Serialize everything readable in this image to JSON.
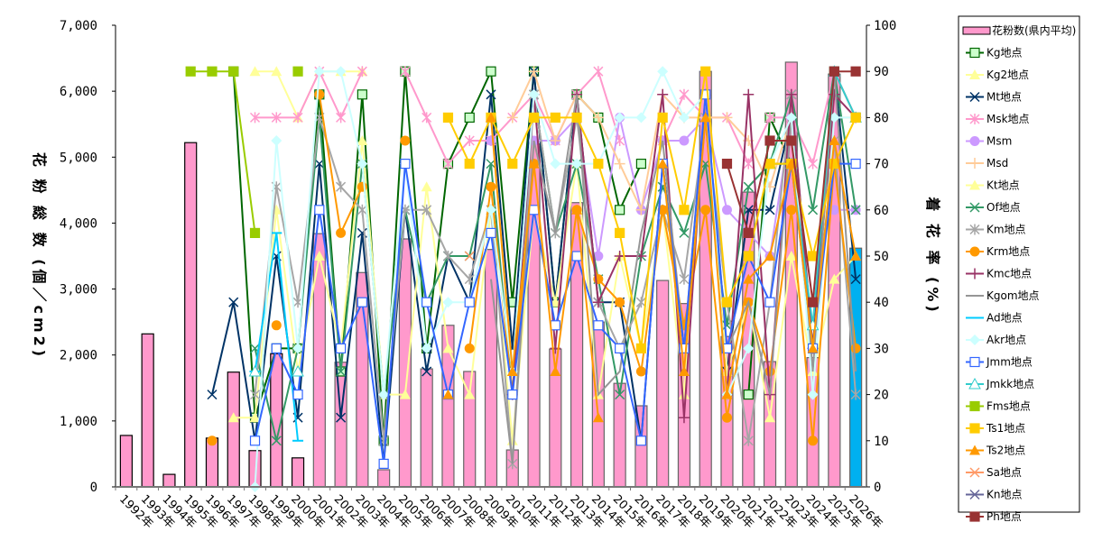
{
  "chart_data": {
    "type": "bar+line",
    "left_axis": {
      "label": "花 粉 総 数 (個／cm2)",
      "ylim": [
        0,
        7000
      ],
      "ticks": [
        "0",
        "1,000",
        "2,000",
        "3,000",
        "4,000",
        "5,000",
        "6,000",
        "7,000"
      ]
    },
    "right_axis": {
      "label": "着 花 率 (%)",
      "ylim": [
        0,
        100
      ],
      "ticks": [
        "0",
        "10",
        "20",
        "30",
        "40",
        "50",
        "60",
        "70",
        "80",
        "90",
        "100"
      ]
    },
    "categories": [
      "1992年",
      "1993年",
      "1994年",
      "1995年",
      "1996年",
      "1997年",
      "1998年",
      "1999年",
      "2000年",
      "2001年",
      "2002年",
      "2003年",
      "2004年",
      "2005年",
      "2006年",
      "2007年",
      "2008年",
      "2009年",
      "2010年",
      "2011年",
      "2012年",
      "2013年",
      "2014年",
      "2015年",
      "2016年",
      "2017年",
      "2018年",
      "2019年",
      "2020年",
      "2021年",
      "2022年",
      "2023年",
      "2024年",
      "2025年",
      "2026年"
    ],
    "legend_placement": "right",
    "bars": {
      "name": "花粉数(県内平均)",
      "color": "#ff99cc",
      "highlight_color": "#00b0f0",
      "values": [
        780,
        2320,
        190,
        5220,
        740,
        1740,
        550,
        2020,
        440,
        3840,
        1890,
        3250,
        260,
        3760,
        1790,
        2450,
        1750,
        3600,
        560,
        5200,
        2090,
        4310,
        2500,
        1570,
        1230,
        3130,
        2780,
        6300,
        2280,
        4470,
        1900,
        6440,
        1960,
        6260,
        3620
      ]
    },
    "series": [
      {
        "name": "Kg地点",
        "color": "#006600",
        "marker": "square",
        "fill": "#ccffcc",
        "values": [
          null,
          null,
          null,
          null,
          null,
          90,
          15,
          30,
          30,
          85,
          25,
          85,
          10,
          90,
          30,
          70,
          80,
          90,
          40,
          90,
          40,
          85,
          80,
          60,
          70,
          null,
          null,
          null,
          null,
          20,
          80,
          70,
          null,
          90,
          80
        ]
      },
      {
        "name": "Kg2地点",
        "color": "#ffff99",
        "marker": "triangle",
        "values": [
          null,
          null,
          null,
          null,
          null,
          null,
          90,
          90,
          80,
          90,
          90,
          90,
          null,
          null,
          null,
          null,
          null,
          null,
          null,
          null,
          null,
          null,
          null,
          null,
          null,
          null,
          null,
          null,
          null,
          null,
          null,
          null,
          null,
          null,
          null
        ]
      },
      {
        "name": "Mt地点",
        "color": "#003366",
        "marker": "x",
        "values": [
          null,
          null,
          null,
          null,
          20,
          40,
          10,
          50,
          15,
          70,
          15,
          55,
          5,
          60,
          25,
          50,
          40,
          85,
          30,
          90,
          40,
          85,
          40,
          40,
          10,
          70,
          30,
          80,
          25,
          60,
          60,
          80,
          30,
          90,
          45
        ]
      },
      {
        "name": "Msk地点",
        "color": "#ff99cc",
        "marker": "star",
        "values": [
          null,
          null,
          null,
          null,
          null,
          null,
          80,
          80,
          80,
          90,
          80,
          90,
          null,
          90,
          80,
          70,
          75,
          75,
          80,
          85,
          75,
          85,
          90,
          75,
          null,
          75,
          85,
          80,
          80,
          70,
          80,
          80,
          70,
          90,
          80
        ]
      },
      {
        "name": "Msm",
        "color": "#cc99ff",
        "marker": "circle",
        "values": [
          null,
          null,
          null,
          null,
          null,
          null,
          null,
          null,
          null,
          null,
          null,
          null,
          null,
          null,
          null,
          null,
          null,
          75,
          null,
          75,
          75,
          80,
          50,
          80,
          60,
          75,
          75,
          80,
          60,
          55,
          50,
          80,
          null,
          60,
          60
        ]
      },
      {
        "name": "Msd",
        "color": "#ffcc99",
        "marker": "plus",
        "values": [
          null,
          null,
          null,
          null,
          null,
          null,
          null,
          null,
          null,
          null,
          null,
          null,
          null,
          null,
          null,
          null,
          null,
          null,
          80,
          90,
          75,
          85,
          80,
          70,
          60,
          85,
          80,
          80,
          80,
          75,
          65,
          80,
          null,
          80,
          80
        ]
      },
      {
        "name": "Kt地点",
        "color": "#ffff99",
        "marker": "triangle",
        "values": [
          null,
          null,
          null,
          null,
          null,
          15,
          15,
          60,
          25,
          50,
          30,
          75,
          20,
          20,
          65,
          30,
          20,
          60,
          10,
          60,
          40,
          70,
          20,
          50,
          30,
          60,
          20,
          85,
          25,
          40,
          15,
          50,
          25,
          45,
          50
        ]
      },
      {
        "name": "Of地点",
        "color": "#339966",
        "marker": "x",
        "values": [
          null,
          null,
          null,
          null,
          null,
          null,
          30,
          10,
          30,
          80,
          25,
          70,
          20,
          60,
          40,
          50,
          50,
          70,
          20,
          85,
          55,
          70,
          45,
          20,
          50,
          65,
          55,
          70,
          35,
          65,
          70,
          85,
          60,
          90,
          60
        ]
      },
      {
        "name": "Km地点",
        "color": "#a6a6a6",
        "marker": "star",
        "values": [
          null,
          null,
          null,
          null,
          null,
          null,
          20,
          65,
          40,
          80,
          65,
          60,
          10,
          60,
          60,
          50,
          45,
          60,
          5,
          85,
          55,
          80,
          40,
          30,
          40,
          60,
          45,
          80,
          40,
          10,
          40,
          85,
          30,
          75,
          20
        ]
      },
      {
        "name": "Krm地点",
        "color": "#ff9900",
        "marker": "circle",
        "values": [
          null,
          null,
          null,
          null,
          10,
          null,
          null,
          35,
          null,
          85,
          55,
          65,
          null,
          75,
          null,
          null,
          30,
          65,
          20,
          70,
          null,
          60,
          45,
          40,
          25,
          60,
          35,
          60,
          15,
          40,
          25,
          60,
          10,
          70,
          30
        ]
      },
      {
        "name": "Kmc地点",
        "color": "#993366",
        "marker": "plus",
        "values": [
          null,
          null,
          null,
          null,
          null,
          null,
          null,
          null,
          null,
          null,
          null,
          null,
          null,
          null,
          null,
          null,
          null,
          null,
          20,
          85,
          30,
          85,
          40,
          50,
          50,
          85,
          15,
          85,
          20,
          85,
          20,
          85,
          30,
          85,
          80
        ]
      },
      {
        "name": "Kgom地点",
        "color": "#969696",
        "marker": "none",
        "values": [
          null,
          null,
          null,
          null,
          null,
          null,
          null,
          null,
          null,
          null,
          null,
          null,
          null,
          null,
          null,
          null,
          null,
          45,
          5,
          75,
          55,
          85,
          20,
          25,
          55,
          75,
          30,
          85,
          30,
          40,
          20,
          80,
          25,
          90,
          25
        ]
      },
      {
        "name": "Ad地点",
        "color": "#00ccff",
        "marker": "dash",
        "values": [
          null,
          null,
          null,
          null,
          null,
          null,
          25,
          55,
          10,
          null,
          null,
          null,
          null,
          null,
          null,
          null,
          null,
          null,
          null,
          null,
          null,
          null,
          null,
          null,
          null,
          null,
          null,
          null,
          null,
          null,
          null,
          null,
          null,
          null,
          null
        ]
      },
      {
        "name": "Akr地点",
        "color": "#ccffff",
        "marker": "diamond",
        "values": [
          null,
          null,
          null,
          null,
          null,
          null,
          0,
          75,
          30,
          90,
          90,
          70,
          20,
          70,
          30,
          40,
          40,
          60,
          25,
          85,
          70,
          70,
          70,
          80,
          80,
          90,
          80,
          85,
          20,
          30,
          70,
          80,
          20,
          80,
          80
        ]
      },
      {
        "name": "Jmm地点",
        "color": "#3366ff",
        "marker": "square",
        "fill": "#ffffff",
        "values": [
          null,
          null,
          null,
          null,
          null,
          null,
          10,
          30,
          20,
          60,
          30,
          40,
          5,
          70,
          40,
          20,
          40,
          55,
          20,
          60,
          35,
          50,
          35,
          30,
          10,
          70,
          30,
          85,
          30,
          50,
          40,
          70,
          30,
          70,
          70
        ]
      },
      {
        "name": "Jmkk地点",
        "color": "#33cccc",
        "marker": "triangle-open",
        "values": [
          null,
          null,
          null,
          null,
          null,
          null,
          25,
          null,
          25,
          null,
          null,
          null,
          null,
          null,
          null,
          null,
          null,
          null,
          null,
          null,
          null,
          null,
          null,
          null,
          null,
          null,
          null,
          null,
          null,
          null,
          70,
          70,
          35,
          90,
          80
        ]
      },
      {
        "name": "Fms地点",
        "color": "#99cc00",
        "marker": "square",
        "fill": "#99cc00",
        "values": [
          null,
          null,
          null,
          90,
          90,
          90,
          55,
          null,
          90,
          null,
          null,
          null,
          null,
          null,
          null,
          null,
          null,
          null,
          null,
          null,
          null,
          null,
          null,
          null,
          null,
          null,
          null,
          null,
          null,
          null,
          70,
          70,
          null,
          null,
          null
        ]
      },
      {
        "name": "Ts1地点",
        "color": "#ffcc00",
        "marker": "square",
        "fill": "#ffcc00",
        "values": [
          null,
          null,
          null,
          null,
          null,
          null,
          null,
          null,
          null,
          null,
          null,
          null,
          null,
          null,
          null,
          80,
          70,
          80,
          70,
          80,
          80,
          80,
          70,
          55,
          30,
          80,
          60,
          90,
          40,
          50,
          70,
          70,
          50,
          70,
          80
        ]
      },
      {
        "name": "Ts2地点",
        "color": "#ff9900",
        "marker": "triangle",
        "values": [
          null,
          null,
          null,
          null,
          null,
          null,
          null,
          null,
          null,
          null,
          null,
          null,
          null,
          null,
          null,
          20,
          null,
          80,
          25,
          70,
          25,
          60,
          15,
          null,
          null,
          70,
          25,
          80,
          20,
          45,
          50,
          70,
          30,
          75,
          50
        ]
      },
      {
        "name": "Sa地点",
        "color": "#ff9966",
        "marker": "x",
        "values": [
          null,
          null,
          null,
          null,
          null,
          null,
          null,
          null,
          null,
          null,
          null,
          null,
          null,
          null,
          null,
          null,
          50,
          null,
          null,
          null,
          null,
          null,
          null,
          null,
          null,
          null,
          null,
          null,
          null,
          null,
          null,
          null,
          null,
          null,
          null
        ]
      },
      {
        "name": "Kn地点",
        "color": "#666699",
        "marker": "x",
        "values": [
          null,
          null,
          null,
          null,
          null,
          null,
          null,
          null,
          null,
          null,
          null,
          null,
          null,
          null,
          null,
          null,
          null,
          null,
          null,
          null,
          null,
          null,
          null,
          null,
          null,
          null,
          null,
          null,
          null,
          null,
          null,
          null,
          null,
          null,
          null
        ]
      },
      {
        "name": "Ph地点",
        "color": "#993333",
        "marker": "square",
        "fill": "#993333",
        "values": [
          null,
          null,
          null,
          null,
          null,
          null,
          null,
          null,
          null,
          null,
          null,
          null,
          null,
          null,
          null,
          null,
          null,
          null,
          null,
          null,
          null,
          null,
          null,
          null,
          null,
          null,
          null,
          null,
          70,
          55,
          75,
          75,
          40,
          90,
          90
        ]
      }
    ]
  }
}
